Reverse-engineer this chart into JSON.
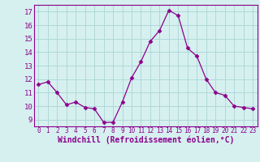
{
  "x": [
    0,
    1,
    2,
    3,
    4,
    5,
    6,
    7,
    8,
    9,
    10,
    11,
    12,
    13,
    14,
    15,
    16,
    17,
    18,
    19,
    20,
    21,
    22,
    23
  ],
  "y": [
    11.6,
    11.8,
    11.0,
    10.1,
    10.3,
    9.9,
    9.8,
    8.8,
    8.8,
    10.3,
    12.1,
    13.3,
    14.8,
    15.6,
    17.1,
    16.7,
    14.3,
    13.7,
    12.0,
    11.0,
    10.8,
    10.0,
    9.9,
    9.8
  ],
  "line_color": "#8b008b",
  "marker": "D",
  "marker_size": 2.5,
  "bg_color": "#d6f0f0",
  "grid_color": "#b0d8d8",
  "xlabel": "Windchill (Refroidissement éolien,°C)",
  "xlabel_fontsize": 7,
  "xtick_fontsize": 5.5,
  "ytick_fontsize": 6.5,
  "xlim": [
    -0.5,
    23.5
  ],
  "ylim": [
    8.5,
    17.5
  ],
  "yticks": [
    9,
    10,
    11,
    12,
    13,
    14,
    15,
    16,
    17
  ],
  "xticks": [
    0,
    1,
    2,
    3,
    4,
    5,
    6,
    7,
    8,
    9,
    10,
    11,
    12,
    13,
    14,
    15,
    16,
    17,
    18,
    19,
    20,
    21,
    22,
    23
  ]
}
